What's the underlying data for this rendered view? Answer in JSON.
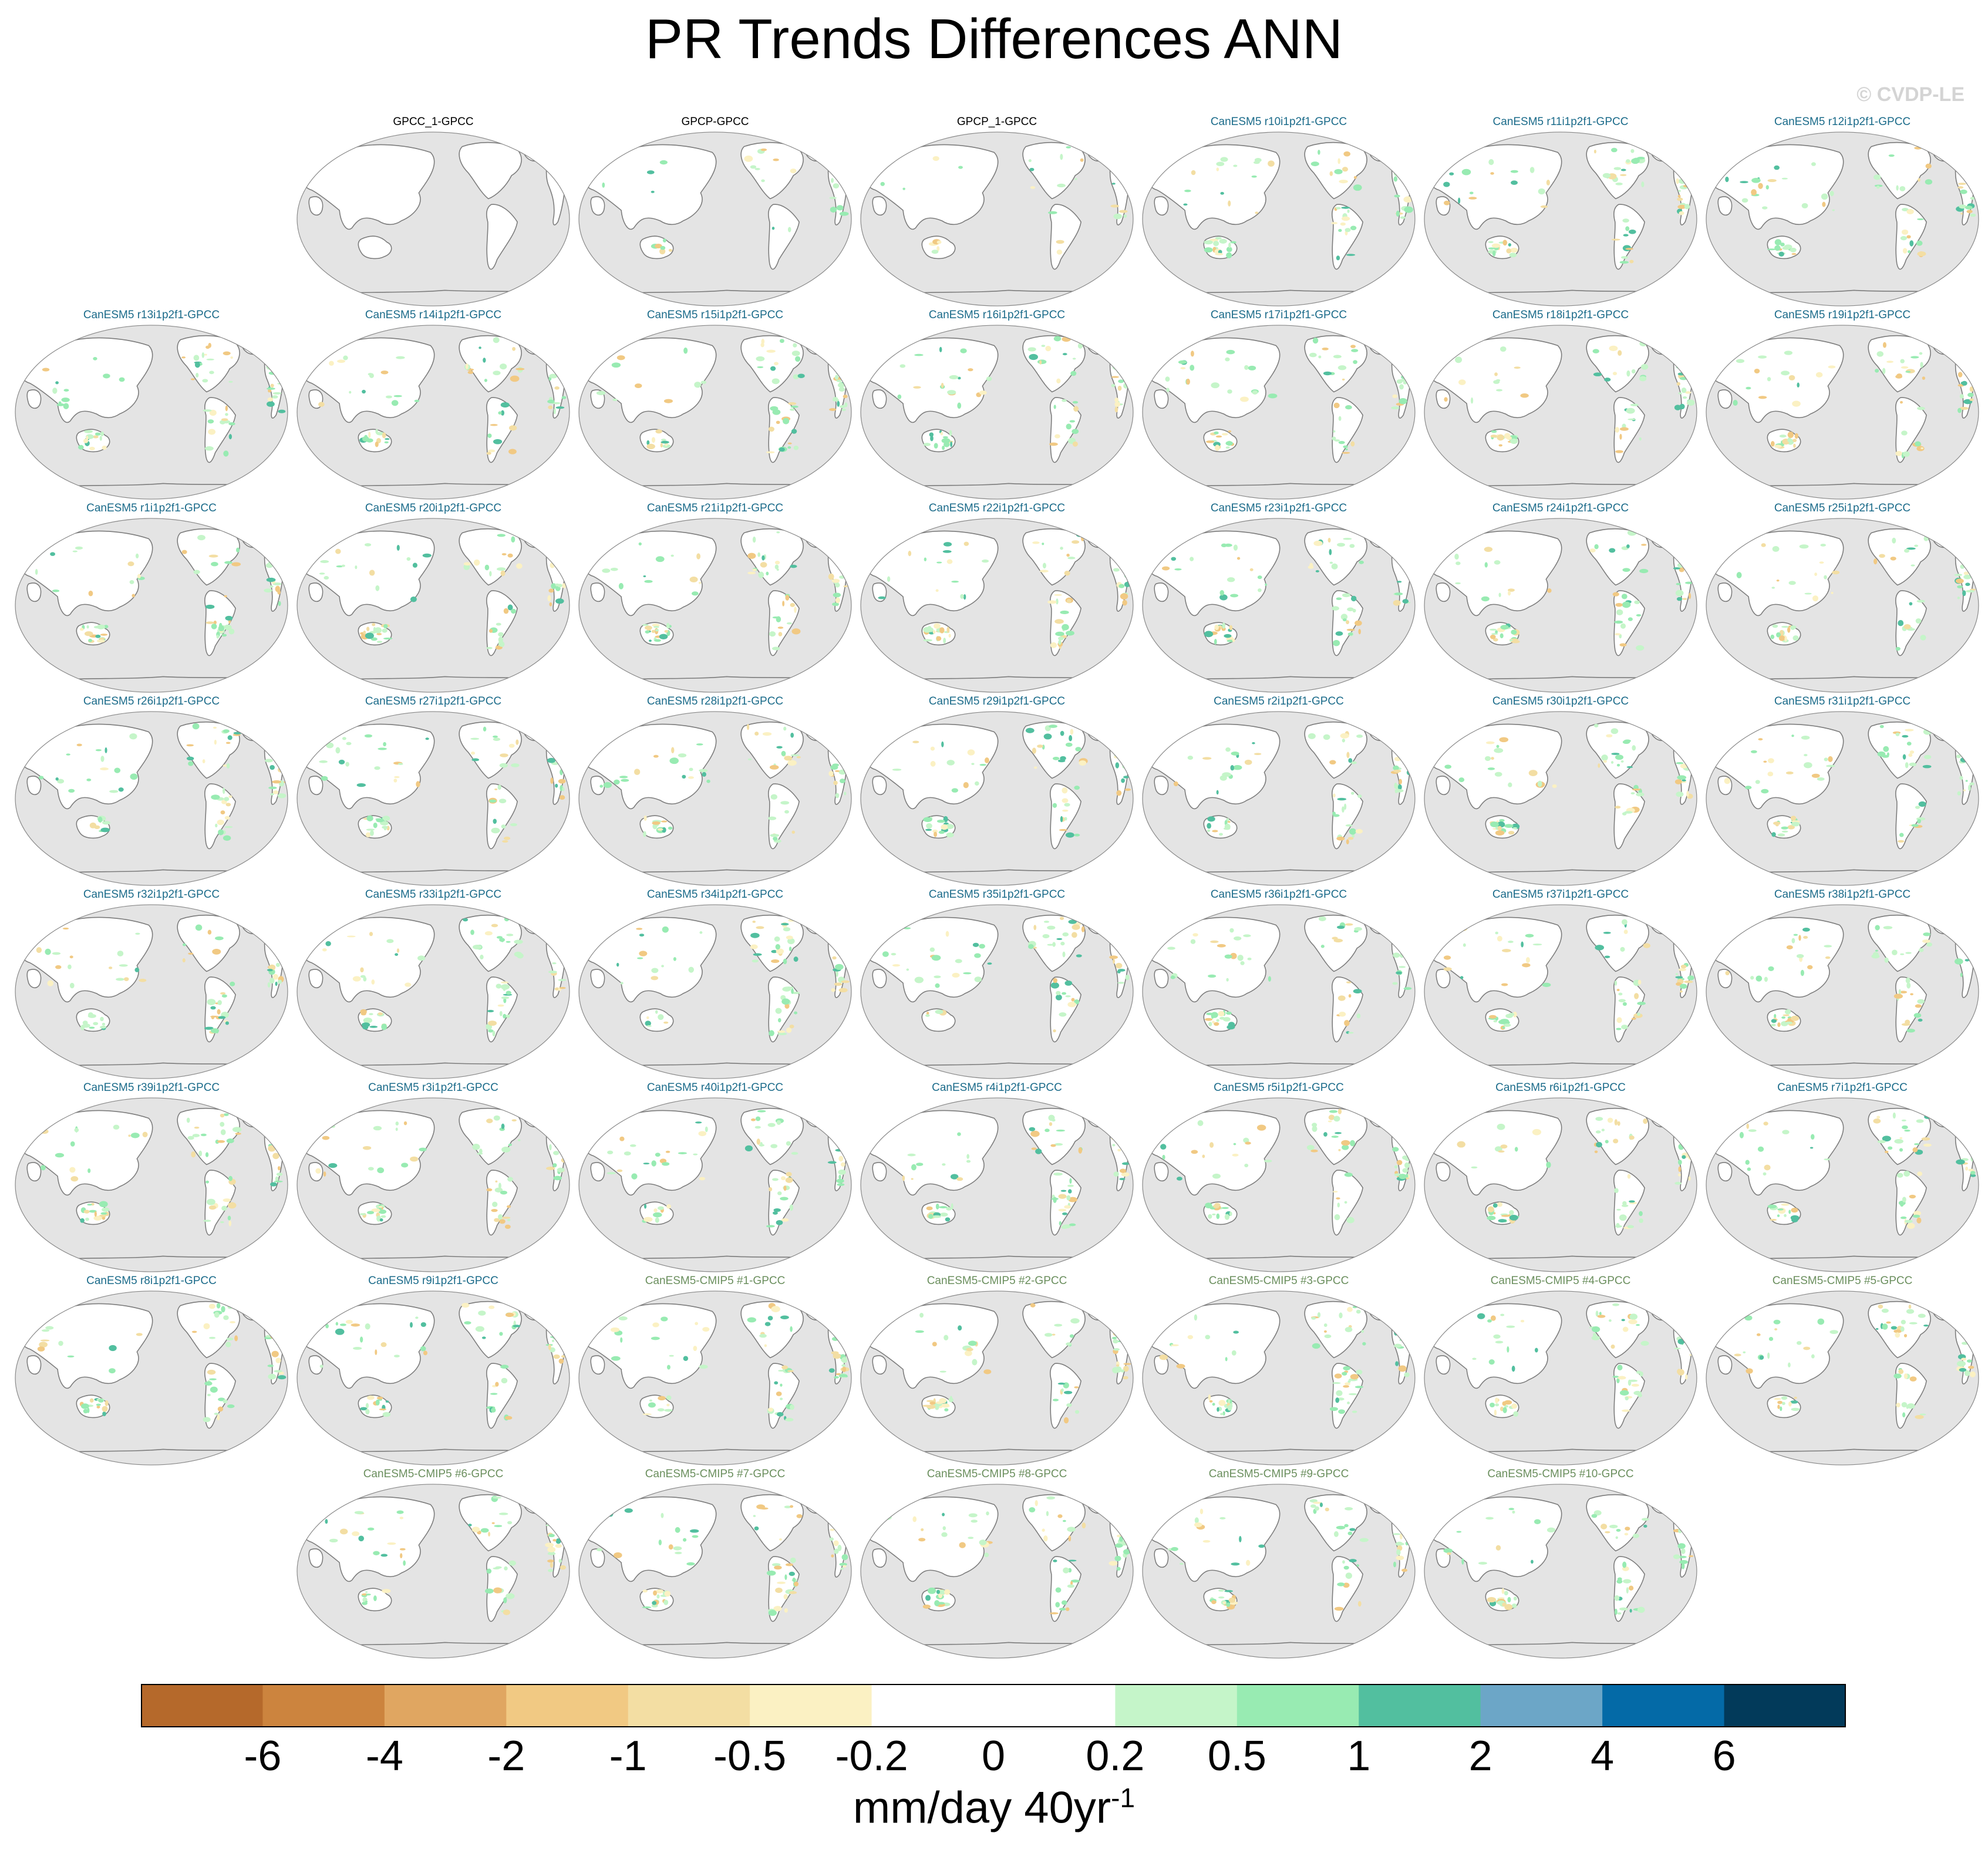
{
  "title": "PR Trends Differences ANN",
  "copyright": "© CVDP-LE",
  "colors": {
    "ocean": "#e4e4e4",
    "land": "#ffffff",
    "coast": "#7c7c7c",
    "label_obs": "#000000",
    "label_canesm5": "#1b6b8a",
    "label_cmip5": "#6b8f5e"
  },
  "chart_data": {
    "type": "heatmap",
    "variable": "PR Trends Differences",
    "season": "ANN",
    "projection": "Robinson (Pacific-centered)",
    "colorbar": {
      "units_text": "mm/day 40yr",
      "units_exponent": "-1",
      "levels": [
        "-6",
        "-4",
        "-2",
        "-1",
        "-0.5",
        "-0.2",
        "0",
        "0.2",
        "0.5",
        "1",
        "2",
        "4",
        "6"
      ],
      "colors": [
        "#b5692b",
        "#cc843e",
        "#e0a661",
        "#f1c983",
        "#f3dea3",
        "#fbf1c3",
        "#ffffff",
        "#ffffff",
        "#c5f5c9",
        "#98ebb2",
        "#52bf9f",
        "#6ca6c7",
        "#046aa7",
        "#023a5a"
      ]
    },
    "panels": [
      {
        "label": "GPCC_1-GPCC",
        "group": "obs"
      },
      {
        "label": "GPCP-GPCC",
        "group": "obs"
      },
      {
        "label": "GPCP_1-GPCC",
        "group": "obs"
      },
      {
        "label": "CanESM5 r10i1p2f1-GPCC",
        "group": "canesm5"
      },
      {
        "label": "CanESM5 r11i1p2f1-GPCC",
        "group": "canesm5"
      },
      {
        "label": "CanESM5 r12i1p2f1-GPCC",
        "group": "canesm5"
      },
      {
        "label": "CanESM5 r13i1p2f1-GPCC",
        "group": "canesm5"
      },
      {
        "label": "CanESM5 r14i1p2f1-GPCC",
        "group": "canesm5"
      },
      {
        "label": "CanESM5 r15i1p2f1-GPCC",
        "group": "canesm5"
      },
      {
        "label": "CanESM5 r16i1p2f1-GPCC",
        "group": "canesm5"
      },
      {
        "label": "CanESM5 r17i1p2f1-GPCC",
        "group": "canesm5"
      },
      {
        "label": "CanESM5 r18i1p2f1-GPCC",
        "group": "canesm5"
      },
      {
        "label": "CanESM5 r19i1p2f1-GPCC",
        "group": "canesm5"
      },
      {
        "label": "CanESM5 r1i1p2f1-GPCC",
        "group": "canesm5"
      },
      {
        "label": "CanESM5 r20i1p2f1-GPCC",
        "group": "canesm5"
      },
      {
        "label": "CanESM5 r21i1p2f1-GPCC",
        "group": "canesm5"
      },
      {
        "label": "CanESM5 r22i1p2f1-GPCC",
        "group": "canesm5"
      },
      {
        "label": "CanESM5 r23i1p2f1-GPCC",
        "group": "canesm5"
      },
      {
        "label": "CanESM5 r24i1p2f1-GPCC",
        "group": "canesm5"
      },
      {
        "label": "CanESM5 r25i1p2f1-GPCC",
        "group": "canesm5"
      },
      {
        "label": "CanESM5 r26i1p2f1-GPCC",
        "group": "canesm5"
      },
      {
        "label": "CanESM5 r27i1p2f1-GPCC",
        "group": "canesm5"
      },
      {
        "label": "CanESM5 r28i1p2f1-GPCC",
        "group": "canesm5"
      },
      {
        "label": "CanESM5 r29i1p2f1-GPCC",
        "group": "canesm5"
      },
      {
        "label": "CanESM5 r2i1p2f1-GPCC",
        "group": "canesm5"
      },
      {
        "label": "CanESM5 r30i1p2f1-GPCC",
        "group": "canesm5"
      },
      {
        "label": "CanESM5 r31i1p2f1-GPCC",
        "group": "canesm5"
      },
      {
        "label": "CanESM5 r32i1p2f1-GPCC",
        "group": "canesm5"
      },
      {
        "label": "CanESM5 r33i1p2f1-GPCC",
        "group": "canesm5"
      },
      {
        "label": "CanESM5 r34i1p2f1-GPCC",
        "group": "canesm5"
      },
      {
        "label": "CanESM5 r35i1p2f1-GPCC",
        "group": "canesm5"
      },
      {
        "label": "CanESM5 r36i1p2f1-GPCC",
        "group": "canesm5"
      },
      {
        "label": "CanESM5 r37i1p2f1-GPCC",
        "group": "canesm5"
      },
      {
        "label": "CanESM5 r38i1p2f1-GPCC",
        "group": "canesm5"
      },
      {
        "label": "CanESM5 r39i1p2f1-GPCC",
        "group": "canesm5"
      },
      {
        "label": "CanESM5 r3i1p2f1-GPCC",
        "group": "canesm5"
      },
      {
        "label": "CanESM5 r40i1p2f1-GPCC",
        "group": "canesm5"
      },
      {
        "label": "CanESM5 r4i1p2f1-GPCC",
        "group": "canesm5"
      },
      {
        "label": "CanESM5 r5i1p2f1-GPCC",
        "group": "canesm5"
      },
      {
        "label": "CanESM5 r6i1p2f1-GPCC",
        "group": "canesm5"
      },
      {
        "label": "CanESM5 r7i1p2f1-GPCC",
        "group": "canesm5"
      },
      {
        "label": "CanESM5 r8i1p2f1-GPCC",
        "group": "canesm5"
      },
      {
        "label": "CanESM5 r9i1p2f1-GPCC",
        "group": "canesm5"
      },
      {
        "label": "CanESM5-CMIP5 #1-GPCC",
        "group": "cmip5"
      },
      {
        "label": "CanESM5-CMIP5 #2-GPCC",
        "group": "cmip5"
      },
      {
        "label": "CanESM5-CMIP5 #3-GPCC",
        "group": "cmip5"
      },
      {
        "label": "CanESM5-CMIP5 #4-GPCC",
        "group": "cmip5"
      },
      {
        "label": "CanESM5-CMIP5 #5-GPCC",
        "group": "cmip5"
      },
      {
        "label": "CanESM5-CMIP5 #6-GPCC",
        "group": "cmip5"
      },
      {
        "label": "CanESM5-CMIP5 #7-GPCC",
        "group": "cmip5"
      },
      {
        "label": "CanESM5-CMIP5 #8-GPCC",
        "group": "cmip5"
      },
      {
        "label": "CanESM5-CMIP5 #9-GPCC",
        "group": "cmip5"
      },
      {
        "label": "CanESM5-CMIP5 #10-GPCC",
        "group": "cmip5"
      }
    ]
  }
}
